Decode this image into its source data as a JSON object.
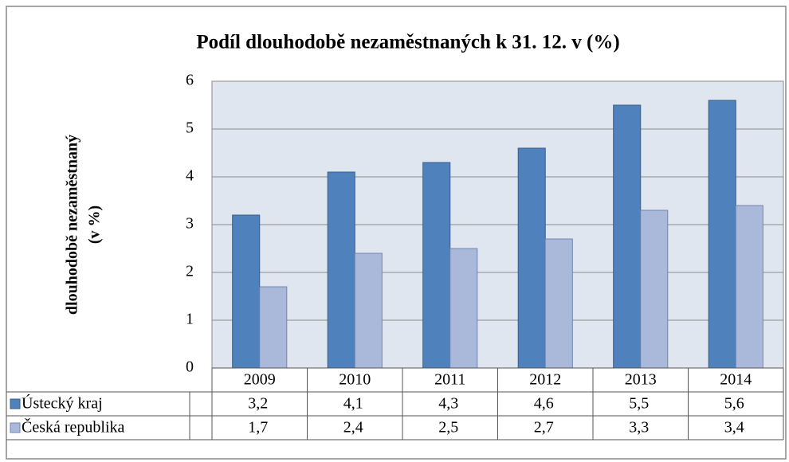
{
  "chart_data": {
    "type": "bar",
    "title": "Podíl dlouhodobě nezaměstnaných k 31. 12. v (%)",
    "ylabel": [
      "dlouhodobě nezaměstnaný",
      "(v %)"
    ],
    "categories": [
      "2009",
      "2010",
      "2011",
      "2012",
      "2013",
      "2014"
    ],
    "series": [
      {
        "name": "Ústecký kraj",
        "color": "#4f81bd",
        "values": [
          3.2,
          4.1,
          4.3,
          4.6,
          5.5,
          5.6
        ],
        "value_labels": [
          "3,2",
          "4,1",
          "4,3",
          "4,6",
          "5,5",
          "5,6"
        ]
      },
      {
        "name": "Česká republika",
        "color": "#aab9d9",
        "values": [
          1.7,
          2.4,
          2.5,
          2.7,
          3.3,
          3.4
        ],
        "value_labels": [
          "1,7",
          "2,4",
          "2,5",
          "2,7",
          "3,3",
          "3,4"
        ]
      }
    ],
    "ylim": [
      0,
      6
    ],
    "yticks": [
      0,
      1,
      2,
      3,
      4,
      5,
      6
    ],
    "grid": true
  }
}
